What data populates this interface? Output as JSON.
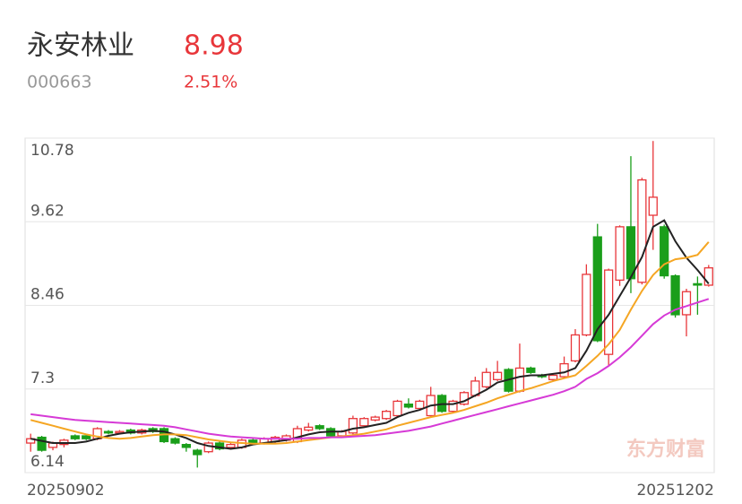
{
  "header": {
    "name": "永安林业",
    "price": "8.98",
    "code": "000663",
    "change": "2.51%"
  },
  "watermark": "东方财富",
  "chart_data": {
    "type": "candlestick",
    "categories": [
      "20250902",
      null,
      null,
      null,
      null,
      null,
      null,
      null,
      null,
      null,
      null,
      null,
      null,
      null,
      null,
      null,
      null,
      null,
      null,
      null,
      null,
      null,
      null,
      null,
      null,
      null,
      null,
      null,
      null,
      null,
      null,
      null,
      null,
      null,
      null,
      null,
      null,
      null,
      null,
      null,
      null,
      null,
      null,
      null,
      null,
      null,
      null,
      null,
      null,
      null,
      null,
      null,
      null,
      null,
      null,
      null,
      null,
      null,
      null,
      null,
      null,
      "20251202"
    ],
    "open": [
      6.55,
      6.63,
      6.49,
      6.53,
      6.65,
      6.65,
      6.61,
      6.71,
      6.69,
      6.73,
      6.69,
      6.75,
      6.75,
      6.61,
      6.53,
      6.45,
      6.43,
      6.55,
      6.49,
      6.49,
      6.59,
      6.55,
      6.57,
      6.59,
      6.57,
      6.73,
      6.79,
      6.75,
      6.65,
      6.69,
      6.79,
      6.87,
      6.89,
      6.93,
      7.09,
      7.03,
      6.93,
      7.21,
      6.99,
      7.09,
      7.21,
      7.33,
      7.43,
      7.57,
      7.27,
      7.59,
      7.49,
      7.43,
      7.47,
      7.69,
      8.05,
      9.41,
      7.78,
      8.81,
      9.55,
      8.78,
      9.71,
      9.55,
      8.87,
      8.33,
      8.76,
      8.74
    ],
    "high": [
      6.68,
      6.65,
      6.57,
      6.61,
      6.67,
      6.67,
      6.77,
      6.73,
      6.73,
      6.75,
      6.75,
      6.77,
      6.77,
      6.63,
      6.55,
      6.47,
      6.57,
      6.57,
      6.55,
      6.61,
      6.61,
      6.63,
      6.65,
      6.67,
      6.79,
      6.83,
      6.81,
      6.77,
      6.73,
      6.93,
      6.91,
      6.93,
      7.01,
      7.15,
      7.17,
      7.15,
      7.33,
      7.23,
      7.15,
      7.27,
      7.47,
      7.59,
      7.69,
      7.59,
      7.93,
      7.61,
      7.51,
      7.51,
      7.75,
      8.13,
      9.03,
      9.59,
      8.97,
      9.57,
      10.53,
      10.23,
      10.74,
      9.58,
      8.89,
      8.69,
      8.86,
      9.02
    ],
    "low": [
      6.43,
      6.43,
      6.45,
      6.49,
      6.59,
      6.59,
      6.59,
      6.67,
      6.67,
      6.67,
      6.67,
      6.69,
      6.55,
      6.53,
      6.43,
      6.21,
      6.41,
      6.45,
      6.47,
      6.47,
      6.53,
      6.53,
      6.55,
      6.57,
      6.55,
      6.71,
      6.73,
      6.63,
      6.63,
      6.67,
      6.77,
      6.85,
      6.87,
      6.91,
      7.03,
      7.01,
      6.91,
      6.97,
      6.97,
      7.07,
      7.19,
      7.31,
      7.41,
      7.25,
      7.25,
      7.51,
      7.45,
      7.41,
      7.45,
      7.67,
      8.03,
      7.95,
      7.63,
      8.73,
      8.63,
      8.75,
      9.23,
      8.83,
      8.29,
      8.03,
      8.33,
      8.72
    ],
    "close": [
      6.61,
      6.45,
      6.55,
      6.59,
      6.61,
      6.61,
      6.75,
      6.69,
      6.71,
      6.69,
      6.73,
      6.71,
      6.57,
      6.55,
      6.49,
      6.39,
      6.55,
      6.47,
      6.53,
      6.59,
      6.55,
      6.61,
      6.63,
      6.65,
      6.75,
      6.77,
      6.75,
      6.65,
      6.71,
      6.89,
      6.89,
      6.91,
      6.99,
      7.13,
      7.05,
      7.13,
      7.21,
      6.99,
      7.13,
      7.25,
      7.41,
      7.53,
      7.53,
      7.27,
      7.59,
      7.53,
      7.47,
      7.49,
      7.65,
      8.05,
      8.89,
      7.97,
      8.95,
      9.55,
      8.83,
      10.2,
      9.96,
      8.87,
      8.33,
      8.65,
      8.76,
      8.98
    ],
    "up_color": "#e8363a",
    "down_color": "#1a9e1a",
    "lines": [
      {
        "color": "#222222",
        "values": [
          6.61,
          6.58,
          6.55,
          6.55,
          6.55,
          6.57,
          6.61,
          6.65,
          6.68,
          6.7,
          6.71,
          6.72,
          6.71,
          6.67,
          6.62,
          6.55,
          6.51,
          6.49,
          6.47,
          6.49,
          6.53,
          6.55,
          6.57,
          6.59,
          6.63,
          6.67,
          6.7,
          6.71,
          6.71,
          6.75,
          6.77,
          6.8,
          6.83,
          6.91,
          6.97,
          7.01,
          7.07,
          7.09,
          7.09,
          7.13,
          7.21,
          7.29,
          7.39,
          7.43,
          7.47,
          7.49,
          7.49,
          7.51,
          7.53,
          7.59,
          7.83,
          8.13,
          8.33,
          8.59,
          8.85,
          9.13,
          9.55,
          9.64,
          9.35,
          9.12,
          8.95,
          8.76
        ]
      },
      {
        "color": "#f5a623",
        "values": [
          6.87,
          6.83,
          6.79,
          6.75,
          6.71,
          6.67,
          6.64,
          6.62,
          6.61,
          6.62,
          6.64,
          6.66,
          6.67,
          6.67,
          6.66,
          6.63,
          6.6,
          6.58,
          6.56,
          6.55,
          6.54,
          6.54,
          6.54,
          6.55,
          6.57,
          6.59,
          6.61,
          6.63,
          6.64,
          6.66,
          6.68,
          6.71,
          6.74,
          6.79,
          6.83,
          6.87,
          6.91,
          6.94,
          6.97,
          7.01,
          7.06,
          7.11,
          7.17,
          7.22,
          7.27,
          7.31,
          7.36,
          7.41,
          7.45,
          7.49,
          7.62,
          7.76,
          7.92,
          8.12,
          8.4,
          8.66,
          8.88,
          9.03,
          9.1,
          9.12,
          9.16,
          9.34
        ]
      },
      {
        "color": "#d63ad6",
        "values": [
          6.95,
          6.93,
          6.91,
          6.89,
          6.87,
          6.86,
          6.85,
          6.84,
          6.83,
          6.82,
          6.81,
          6.8,
          6.79,
          6.77,
          6.74,
          6.71,
          6.68,
          6.66,
          6.64,
          6.63,
          6.62,
          6.61,
          6.61,
          6.61,
          6.61,
          6.62,
          6.62,
          6.63,
          6.63,
          6.64,
          6.65,
          6.66,
          6.68,
          6.7,
          6.72,
          6.75,
          6.78,
          6.82,
          6.86,
          6.9,
          6.94,
          6.98,
          7.02,
          7.06,
          7.1,
          7.14,
          7.18,
          7.22,
          7.27,
          7.33,
          7.44,
          7.52,
          7.62,
          7.74,
          7.88,
          8.04,
          8.2,
          8.32,
          8.4,
          8.45,
          8.5,
          8.55
        ]
      }
    ],
    "ylim": [
      6.14,
      10.78
    ],
    "yticks": [
      6.14,
      7.3,
      8.46,
      9.62,
      10.78
    ],
    "grid": true
  }
}
